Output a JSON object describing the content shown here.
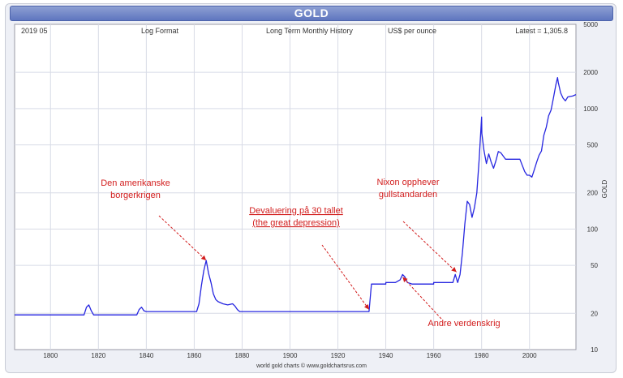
{
  "chart_data": {
    "type": "line",
    "title": "GOLD",
    "header": {
      "date": "2019 05",
      "format": "Log Format",
      "history": "Long Term Monthly History",
      "units": "US$ per ounce",
      "latest": "Latest = 1,305.8"
    },
    "ylabel": "GOLD",
    "xlabel": "",
    "source": "world gold charts © www.goldchartsrus.com",
    "y_scale": "log",
    "ylim": [
      10,
      5000
    ],
    "xlim": [
      1785,
      2019.4
    ],
    "x_ticks": [
      "1800",
      "1820",
      "1840",
      "1860",
      "1880",
      "1900",
      "1920",
      "1940",
      "1960",
      "1980",
      "2000"
    ],
    "y_ticks": [
      "5000",
      "2000",
      "1000",
      "500",
      "200",
      "100",
      "50",
      "20",
      "10"
    ],
    "grid": true,
    "series": [
      {
        "color": "#2626e0",
        "x": [
          1785,
          1814,
          1815,
          1816,
          1817,
          1818,
          1836,
          1837,
          1838,
          1839,
          1840,
          1841,
          1850,
          1861,
          1862,
          1863,
          1864,
          1865,
          1866,
          1867,
          1868,
          1869,
          1870,
          1872,
          1874,
          1876,
          1877,
          1878,
          1879,
          1880,
          1900,
          1933,
          1934,
          1940,
          1944,
          1946,
          1947,
          1948,
          1949,
          1951,
          1960,
          1968,
          1969,
          1970,
          1971,
          1972,
          1973,
          1974,
          1975,
          1976,
          1977,
          1978,
          1979,
          1980,
          1980.1,
          1981,
          1982,
          1983,
          1984,
          1985,
          1986,
          1987,
          1988,
          1990,
          1993,
          1996,
          1998,
          1999,
          2000,
          2001,
          2002,
          2003,
          2004,
          2005,
          2006,
          2007,
          2008,
          2009,
          2010,
          2011,
          2011.7,
          2012,
          2013,
          2014,
          2015,
          2016,
          2017,
          2018,
          2019.4
        ],
        "y": [
          19.4,
          19.4,
          22.5,
          23.5,
          21,
          19.4,
          19.4,
          21.5,
          22.5,
          21,
          20.7,
          20.7,
          20.7,
          20.7,
          24,
          34,
          45,
          55,
          43,
          36,
          29,
          26,
          25,
          24,
          23.5,
          24,
          23,
          21.5,
          20.7,
          20.7,
          20.7,
          20.7,
          35,
          35,
          36,
          38,
          42,
          40,
          36,
          35,
          35,
          36,
          42,
          36,
          42,
          64,
          110,
          170,
          160,
          125,
          150,
          200,
          380,
          850,
          620,
          450,
          350,
          420,
          360,
          320,
          370,
          440,
          430,
          380,
          380,
          380,
          300,
          280,
          280,
          270,
          310,
          360,
          410,
          445,
          600,
          700,
          870,
          970,
          1220,
          1570,
          1810,
          1650,
          1350,
          1220,
          1160,
          1250,
          1260,
          1270,
          1305.8
        ]
      }
    ],
    "annotations": [
      {
        "lines": [
          "Den amerikanske",
          "borgerkrigen"
        ],
        "arrow_to_x": 1865,
        "arrow_to_y": 55
      },
      {
        "lines": [
          "Devaluering på 30 tallet",
          "(the great depression)"
        ],
        "underline": true,
        "arrow_to_x": 1933,
        "arrow_to_y": 21.5
      },
      {
        "lines": [
          "Nixon opphever",
          "gullstandarden"
        ],
        "arrow_to_x": 1969.5,
        "arrow_to_y": 44
      },
      {
        "lines": [
          "Andre verdenskrig"
        ],
        "arrow_to_x": 1947,
        "arrow_to_y": 40
      }
    ]
  }
}
